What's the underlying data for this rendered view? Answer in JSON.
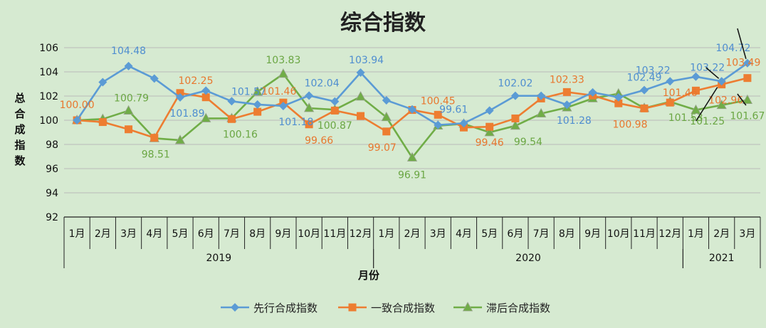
{
  "chart_data": {
    "type": "line",
    "title": "综合指数",
    "xlabel": "月份",
    "ylabel": "总合成指数",
    "ylim": [
      92,
      106
    ],
    "yticks": [
      "92",
      "94",
      "96",
      "98",
      "100",
      "102",
      "104",
      "106"
    ],
    "categories": [
      "1月",
      "2月",
      "3月",
      "4月",
      "5月",
      "6月",
      "7月",
      "8月",
      "9月",
      "10月",
      "11月",
      "12月",
      "1月",
      "2月",
      "3月",
      "4月",
      "5月",
      "6月",
      "7月",
      "8月",
      "9月",
      "10月",
      "11月",
      "12月",
      "1月",
      "2月",
      "3月"
    ],
    "year_groups": [
      {
        "label": "2019",
        "start": 0,
        "end": 11
      },
      {
        "label": "2020",
        "start": 12,
        "end": 23
      },
      {
        "label": "2021",
        "start": 24,
        "end": 26
      }
    ],
    "grid": true,
    "legend": "bottom",
    "series": [
      {
        "name": "先行合成指数",
        "color": "#5b9bd5",
        "marker": "diamond",
        "values": [
          100.0,
          103.15,
          104.48,
          103.45,
          101.89,
          102.45,
          101.57,
          101.3,
          101.18,
          102.04,
          101.55,
          103.94,
          101.65,
          100.9,
          99.61,
          99.75,
          100.8,
          102.02,
          102.02,
          101.28,
          102.3,
          101.9,
          102.49,
          103.22,
          103.6,
          103.22,
          104.72
        ],
        "labels": [
          {
            "i": 2,
            "text": "104.48"
          },
          {
            "i": 4,
            "text": "101.89"
          },
          {
            "i": 6,
            "text": "101.57"
          },
          {
            "i": 8,
            "text": "101.18"
          },
          {
            "i": 9,
            "text": "102.04"
          },
          {
            "i": 11,
            "text": "103.94"
          },
          {
            "i": 14,
            "text": "99.61"
          },
          {
            "i": 17,
            "text": "102.02"
          },
          {
            "i": 19,
            "text": "101.28"
          },
          {
            "i": 22,
            "text": "102.49"
          },
          {
            "i": 23,
            "text": "103.22"
          },
          {
            "i": 25,
            "text": "103.22"
          },
          {
            "i": 26,
            "text": "104.72"
          }
        ]
      },
      {
        "name": "一致合成指数",
        "color": "#ed7d31",
        "marker": "square",
        "values": [
          100.0,
          99.85,
          99.25,
          98.55,
          102.25,
          101.9,
          100.1,
          100.7,
          101.46,
          99.66,
          100.8,
          100.35,
          99.07,
          100.85,
          100.45,
          99.4,
          99.46,
          100.15,
          101.8,
          102.33,
          102.05,
          101.4,
          100.98,
          101.46,
          102.45,
          102.96,
          103.49
        ],
        "labels": [
          {
            "i": 0,
            "text": "100.00"
          },
          {
            "i": 4,
            "text": "102.25"
          },
          {
            "i": 8,
            "text": "101.46"
          },
          {
            "i": 9,
            "text": "99.66"
          },
          {
            "i": 12,
            "text": "99.07"
          },
          {
            "i": 14,
            "text": "100.45"
          },
          {
            "i": 16,
            "text": "99.46"
          },
          {
            "i": 19,
            "text": "102.33"
          },
          {
            "i": 22,
            "text": "100.98"
          },
          {
            "i": 23,
            "text": "101.46"
          },
          {
            "i": 25,
            "text": "102.96"
          },
          {
            "i": 26,
            "text": "103.49"
          }
        ]
      },
      {
        "name": "滞后合成指数",
        "color": "#70ad47",
        "marker": "triangle",
        "values": [
          100.0,
          100.1,
          100.79,
          98.51,
          98.35,
          100.15,
          100.16,
          102.35,
          103.83,
          101.0,
          100.87,
          101.95,
          100.25,
          96.91,
          99.55,
          99.7,
          99.0,
          99.54,
          100.55,
          101.05,
          101.8,
          102.2,
          101.0,
          101.53,
          100.85,
          101.25,
          101.67
        ],
        "labels": [
          {
            "i": 2,
            "text": "100.79"
          },
          {
            "i": 3,
            "text": "98.51"
          },
          {
            "i": 6,
            "text": "100.16"
          },
          {
            "i": 8,
            "text": "103.83"
          },
          {
            "i": 10,
            "text": "100.87"
          },
          {
            "i": 13,
            "text": "96.91"
          },
          {
            "i": 17,
            "text": "99.54"
          },
          {
            "i": 23,
            "text": "101.53"
          },
          {
            "i": 25,
            "text": "101.25"
          },
          {
            "i": 26,
            "text": "101.67"
          }
        ]
      }
    ]
  }
}
